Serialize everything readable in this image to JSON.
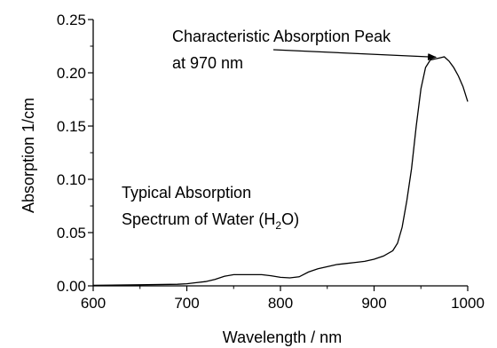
{
  "chart_data": {
    "type": "line",
    "title": "",
    "xlabel": "Wavelength / nm",
    "ylabel": "Absorption 1/cm",
    "xlim": [
      600,
      1000
    ],
    "ylim": [
      0,
      0.25
    ],
    "xticks": [
      600,
      700,
      800,
      900,
      1000
    ],
    "xtick_labels": [
      "600",
      "700",
      "800",
      "900",
      "1000"
    ],
    "yticks": [
      0,
      0.05,
      0.1,
      0.15,
      0.2,
      0.25
    ],
    "ytick_labels": [
      "0.00",
      "0.05",
      "0.10",
      "0.15",
      "0.20",
      "0.25"
    ],
    "grid": false,
    "legend": "none",
    "line_color": "#000000",
    "series": [
      {
        "x": [
          600,
          650,
          690,
          700,
          710,
          720,
          730,
          740,
          750,
          760,
          770,
          780,
          790,
          800,
          810,
          820,
          830,
          840,
          850,
          860,
          870,
          880,
          890,
          900,
          910,
          920,
          925,
          930,
          935,
          940,
          945,
          950,
          955,
          960,
          965,
          970,
          975,
          980,
          985,
          990,
          995,
          1000
        ],
        "y": [
          0.0005,
          0.001,
          0.0015,
          0.002,
          0.003,
          0.004,
          0.006,
          0.009,
          0.0105,
          0.0105,
          0.0105,
          0.0105,
          0.0095,
          0.008,
          0.0075,
          0.0085,
          0.013,
          0.016,
          0.018,
          0.02,
          0.021,
          0.022,
          0.023,
          0.025,
          0.028,
          0.033,
          0.04,
          0.055,
          0.08,
          0.11,
          0.15,
          0.185,
          0.205,
          0.212,
          0.213,
          0.214,
          0.215,
          0.211,
          0.205,
          0.197,
          0.187,
          0.173
        ]
      }
    ],
    "annotations": [
      {
        "lines": [
          "Characteristic Absorption Peak",
          "at 970 nm"
        ],
        "arrow_to": {
          "x": 966,
          "y": 0.213
        }
      },
      {
        "lines": [
          "Typical Absorption",
          "Spectrum of Water (H",
          "2",
          "O)"
        ]
      }
    ]
  }
}
